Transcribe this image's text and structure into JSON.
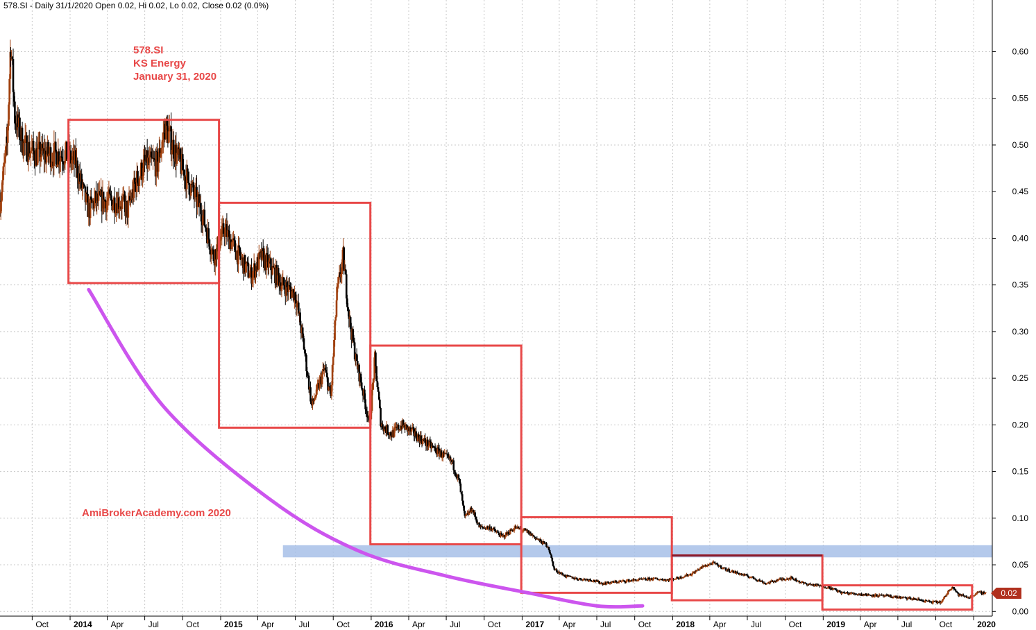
{
  "header": {
    "text": "578.SI - Daily 31/1/2020 Open 0.02, Hi 0.02, Lo 0.02, Close 0.02 (0.0%)"
  },
  "annotation": {
    "symbol": "578.SI",
    "name": "KS Energy",
    "date": "January 31, 2020"
  },
  "watermark": "AmiBrokerAcademy.com  2020",
  "last_price_label": "0.02",
  "colors": {
    "background": "#ffffff",
    "grid": "#c8c8c8",
    "candle_up": "#a0400e",
    "candle_down": "#000000",
    "box": "#e84848",
    "box_top_accent": "#8b1a2a",
    "support_band": "#a7bfe8",
    "curve": "#cc55ee",
    "annotation_text": "#e84848"
  },
  "chart_data": {
    "type": "candlestick",
    "title": "",
    "y_axis": {
      "position": "right",
      "range": [
        -0.005,
        0.645
      ],
      "ticks": [
        "0.00",
        "0.05",
        "0.10",
        "0.15",
        "0.20",
        "0.25",
        "0.30",
        "0.35",
        "0.40",
        "0.45",
        "0.50",
        "0.55",
        "0.60"
      ]
    },
    "x_axis": {
      "ticks": [
        {
          "label": "Oct",
          "date": "2013-10-01",
          "year": false
        },
        {
          "label": "2014",
          "date": "2014-01-01",
          "year": true
        },
        {
          "label": "Apr",
          "date": "2014-04-01",
          "year": false
        },
        {
          "label": "Jul",
          "date": "2014-07-01",
          "year": false
        },
        {
          "label": "Oct",
          "date": "2014-10-01",
          "year": false
        },
        {
          "label": "2015",
          "date": "2015-01-01",
          "year": true
        },
        {
          "label": "Apr",
          "date": "2015-04-01",
          "year": false
        },
        {
          "label": "Jul",
          "date": "2015-07-01",
          "year": false
        },
        {
          "label": "Oct",
          "date": "2015-10-01",
          "year": false
        },
        {
          "label": "2016",
          "date": "2016-01-01",
          "year": true
        },
        {
          "label": "Apr",
          "date": "2016-04-01",
          "year": false
        },
        {
          "label": "Jul",
          "date": "2016-07-01",
          "year": false
        },
        {
          "label": "Oct",
          "date": "2016-10-01",
          "year": false
        },
        {
          "label": "2017",
          "date": "2017-01-01",
          "year": true
        },
        {
          "label": "Apr",
          "date": "2017-04-01",
          "year": false
        },
        {
          "label": "Jul",
          "date": "2017-07-01",
          "year": false
        },
        {
          "label": "Oct",
          "date": "2017-10-01",
          "year": false
        },
        {
          "label": "2018",
          "date": "2018-01-01",
          "year": true
        },
        {
          "label": "Apr",
          "date": "2018-04-01",
          "year": false
        },
        {
          "label": "Jul",
          "date": "2018-07-01",
          "year": false
        },
        {
          "label": "Oct",
          "date": "2018-10-01",
          "year": false
        },
        {
          "label": "2019",
          "date": "2019-01-01",
          "year": true
        },
        {
          "label": "Apr",
          "date": "2019-04-01",
          "year": false
        },
        {
          "label": "Jul",
          "date": "2019-07-01",
          "year": false
        },
        {
          "label": "Oct",
          "date": "2019-10-01",
          "year": false
        },
        {
          "label": "2020",
          "date": "2020-01-01",
          "year": true
        }
      ]
    },
    "grid": true,
    "price_path": [
      [
        "2013-07-15",
        0.44
      ],
      [
        "2013-08-01",
        0.5
      ],
      [
        "2013-08-10",
        0.61
      ],
      [
        "2013-08-20",
        0.53
      ],
      [
        "2013-09-10",
        0.5
      ],
      [
        "2013-10-10",
        0.49
      ],
      [
        "2013-11-15",
        0.49
      ],
      [
        "2013-12-20",
        0.49
      ],
      [
        "2014-01-15",
        0.48
      ],
      [
        "2014-02-01",
        0.45
      ],
      [
        "2014-02-15",
        0.43
      ],
      [
        "2014-03-01",
        0.44
      ],
      [
        "2014-04-01",
        0.44
      ],
      [
        "2014-05-01",
        0.44
      ],
      [
        "2014-05-20",
        0.43
      ],
      [
        "2014-06-10",
        0.46
      ],
      [
        "2014-07-01",
        0.48
      ],
      [
        "2014-08-01",
        0.48
      ],
      [
        "2014-08-20",
        0.52
      ],
      [
        "2014-09-15",
        0.49
      ],
      [
        "2014-10-15",
        0.46
      ],
      [
        "2014-11-15",
        0.43
      ],
      [
        "2014-12-15",
        0.38
      ],
      [
        "2015-01-10",
        0.41
      ],
      [
        "2015-02-15",
        0.38
      ],
      [
        "2015-03-15",
        0.36
      ],
      [
        "2015-04-10",
        0.38
      ],
      [
        "2015-05-01",
        0.37
      ],
      [
        "2015-06-01",
        0.35
      ],
      [
        "2015-07-01",
        0.34
      ],
      [
        "2015-07-20",
        0.29
      ],
      [
        "2015-08-10",
        0.22
      ],
      [
        "2015-08-25",
        0.24
      ],
      [
        "2015-09-10",
        0.26
      ],
      [
        "2015-09-25",
        0.23
      ],
      [
        "2015-10-10",
        0.34
      ],
      [
        "2015-10-25",
        0.38
      ],
      [
        "2015-11-10",
        0.31
      ],
      [
        "2015-11-25",
        0.27
      ],
      [
        "2015-12-10",
        0.24
      ],
      [
        "2015-12-28",
        0.2
      ],
      [
        "2016-01-10",
        0.27
      ],
      [
        "2016-01-25",
        0.2
      ],
      [
        "2016-02-20",
        0.19
      ],
      [
        "2016-03-15",
        0.2
      ],
      [
        "2016-04-15",
        0.19
      ],
      [
        "2016-05-15",
        0.18
      ],
      [
        "2016-06-15",
        0.17
      ],
      [
        "2016-07-15",
        0.16
      ],
      [
        "2016-08-01",
        0.14
      ],
      [
        "2016-08-15",
        0.1
      ],
      [
        "2016-09-01",
        0.11
      ],
      [
        "2016-09-20",
        0.09
      ],
      [
        "2016-10-15",
        0.09
      ],
      [
        "2016-11-15",
        0.08
      ],
      [
        "2016-12-15",
        0.09
      ],
      [
        "2017-01-15",
        0.085
      ],
      [
        "2017-02-15",
        0.075
      ],
      [
        "2017-03-05",
        0.07
      ],
      [
        "2017-03-20",
        0.045
      ],
      [
        "2017-04-15",
        0.038
      ],
      [
        "2017-05-15",
        0.035
      ],
      [
        "2017-06-15",
        0.034
      ],
      [
        "2017-07-15",
        0.03
      ],
      [
        "2017-09-15",
        0.033
      ],
      [
        "2017-11-15",
        0.035
      ],
      [
        "2017-12-20",
        0.034
      ],
      [
        "2018-01-15",
        0.036
      ],
      [
        "2018-02-15",
        0.04
      ],
      [
        "2018-03-15",
        0.048
      ],
      [
        "2018-04-10",
        0.052
      ],
      [
        "2018-05-10",
        0.045
      ],
      [
        "2018-06-15",
        0.04
      ],
      [
        "2018-07-15",
        0.036
      ],
      [
        "2018-08-15",
        0.03
      ],
      [
        "2018-09-15",
        0.034
      ],
      [
        "2018-10-15",
        0.036
      ],
      [
        "2018-11-15",
        0.03
      ],
      [
        "2018-12-15",
        0.028
      ],
      [
        "2019-01-15",
        0.026
      ],
      [
        "2019-02-15",
        0.02
      ],
      [
        "2019-04-15",
        0.018
      ],
      [
        "2019-06-15",
        0.016
      ],
      [
        "2019-08-15",
        0.013
      ],
      [
        "2019-09-20",
        0.01
      ],
      [
        "2019-10-15",
        0.01
      ],
      [
        "2019-11-01",
        0.022
      ],
      [
        "2019-11-10",
        0.027
      ],
      [
        "2019-11-25",
        0.018
      ],
      [
        "2019-12-20",
        0.015
      ],
      [
        "2020-01-10",
        0.02
      ],
      [
        "2020-01-31",
        0.02
      ]
    ],
    "overlays": {
      "boxes": [
        {
          "x0": "2013-12-28",
          "x1": "2014-12-28",
          "top": 0.527,
          "bottom": 0.352
        },
        {
          "x0": "2014-12-28",
          "x1": "2015-12-30",
          "top": 0.438,
          "bottom": 0.197
        },
        {
          "x0": "2015-12-30",
          "x1": "2016-12-30",
          "top": 0.285,
          "bottom": 0.072
        },
        {
          "x0": "2016-12-30",
          "x1": "2017-12-30",
          "top": 0.101,
          "bottom": 0.02
        },
        {
          "x0": "2017-12-30",
          "x1": "2018-12-30",
          "top": 0.06,
          "bottom": 0.012
        },
        {
          "x0": "2018-12-30",
          "x1": "2019-12-28",
          "top": 0.028,
          "bottom": 0.002
        }
      ],
      "support_band": {
        "x0": "2015-06-01",
        "x1": "2020-02-15",
        "low": 0.058,
        "high": 0.071
      },
      "curve": [
        [
          "2014-02-15",
          0.345
        ],
        [
          "2014-08-15",
          0.22
        ],
        [
          "2015-05-01",
          0.12
        ],
        [
          "2015-12-01",
          0.065
        ],
        [
          "2016-07-01",
          0.038
        ],
        [
          "2017-01-15",
          0.02
        ],
        [
          "2017-07-01",
          0.006
        ],
        [
          "2017-10-20",
          0.006
        ]
      ]
    }
  }
}
